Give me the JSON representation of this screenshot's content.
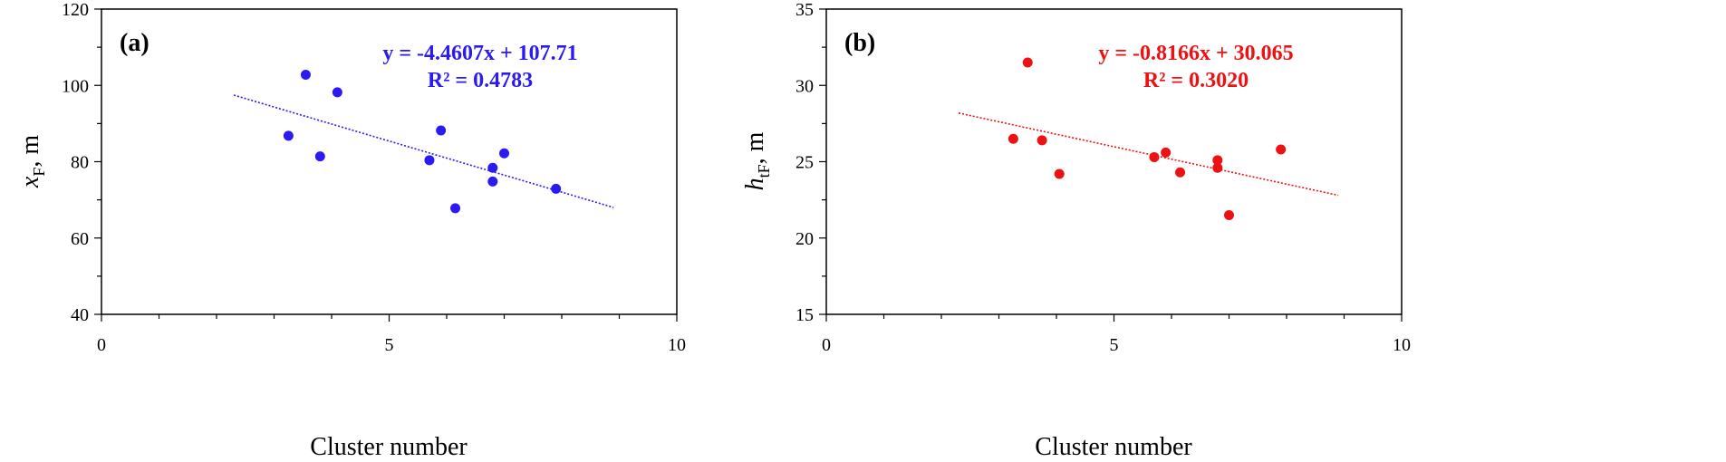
{
  "chart_data": [
    {
      "type": "scatter",
      "panel_label": "(a)",
      "xlabel": "Cluster number",
      "ylabel_main": "x",
      "ylabel_sub": "F",
      "ylabel_unit": ", m",
      "xlim": [
        0,
        10
      ],
      "ylim": [
        40,
        120
      ],
      "x_ticks": [
        0,
        5,
        10
      ],
      "x_minor_step": 1,
      "y_ticks": [
        40,
        60,
        80,
        100,
        120
      ],
      "y_minor_step": 10,
      "color": "#2b1bf2",
      "points": [
        {
          "x": 3.25,
          "y": 86.8
        },
        {
          "x": 3.55,
          "y": 102.8
        },
        {
          "x": 3.8,
          "y": 81.4
        },
        {
          "x": 4.1,
          "y": 98.2
        },
        {
          "x": 5.7,
          "y": 80.4
        },
        {
          "x": 5.9,
          "y": 88.2
        },
        {
          "x": 6.15,
          "y": 67.8
        },
        {
          "x": 6.8,
          "y": 78.4
        },
        {
          "x": 6.8,
          "y": 74.8
        },
        {
          "x": 7.0,
          "y": 82.2
        },
        {
          "x": 7.9,
          "y": 72.9
        }
      ],
      "trendline": {
        "slope": -4.4607,
        "intercept": 107.71,
        "x_start": 2.3,
        "x_end": 8.9
      },
      "equation": "y = -4.4607x + 107.71",
      "r_squared": "R² = 0.4783"
    },
    {
      "type": "scatter",
      "panel_label": "(b)",
      "xlabel": "Cluster number",
      "ylabel_main": "h",
      "ylabel_sub": "tF",
      "ylabel_unit": ", m",
      "xlim": [
        0,
        10
      ],
      "ylim": [
        15,
        35
      ],
      "x_ticks": [
        0,
        5,
        10
      ],
      "x_minor_step": 1,
      "y_ticks": [
        15,
        20,
        25,
        30,
        35
      ],
      "y_minor_step": 2.5,
      "color": "#ee1111",
      "points": [
        {
          "x": 3.25,
          "y": 26.5
        },
        {
          "x": 3.5,
          "y": 31.5
        },
        {
          "x": 3.75,
          "y": 26.4
        },
        {
          "x": 4.05,
          "y": 24.2
        },
        {
          "x": 5.7,
          "y": 25.3
        },
        {
          "x": 5.9,
          "y": 25.6
        },
        {
          "x": 6.15,
          "y": 24.3
        },
        {
          "x": 6.8,
          "y": 25.1
        },
        {
          "x": 6.8,
          "y": 24.6
        },
        {
          "x": 7.0,
          "y": 21.5
        },
        {
          "x": 7.9,
          "y": 25.8
        }
      ],
      "trendline": {
        "slope": -0.8166,
        "intercept": 30.065,
        "x_start": 2.3,
        "x_end": 8.9
      },
      "equation": "y = -0.8166x + 30.065",
      "r_squared": "R² = 0.3020"
    }
  ]
}
